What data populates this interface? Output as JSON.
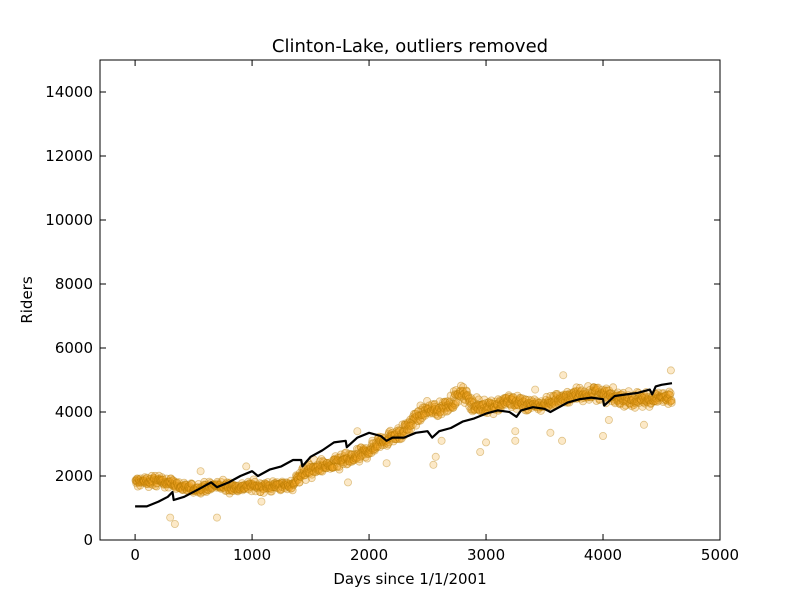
{
  "chart_data": {
    "type": "scatter",
    "title": "Clinton-Lake, outliers removed",
    "xlabel": "Days since 1/1/2001",
    "ylabel": "Riders",
    "xlim": [
      -300,
      5000
    ],
    "ylim": [
      0,
      15000
    ],
    "xticks": [
      0,
      1000,
      2000,
      3000,
      4000,
      5000
    ],
    "yticks": [
      0,
      2000,
      4000,
      6000,
      8000,
      10000,
      12000,
      14000
    ],
    "grid": false,
    "legend": "none",
    "colors": {
      "points_fill": "#f5a623",
      "points_edge": "#b57a00",
      "trend_line": "#000000"
    },
    "series": [
      {
        "kind": "scatter",
        "profile": [
          [
            0,
            1800
          ],
          [
            150,
            1850
          ],
          [
            300,
            1800
          ],
          [
            400,
            1650
          ],
          [
            500,
            1600
          ],
          [
            600,
            1650
          ],
          [
            700,
            1700
          ],
          [
            800,
            1650
          ],
          [
            900,
            1650
          ],
          [
            1000,
            1700
          ],
          [
            1100,
            1650
          ],
          [
            1200,
            1700
          ],
          [
            1300,
            1700
          ],
          [
            1350,
            1750
          ],
          [
            1400,
            2000
          ],
          [
            1500,
            2200
          ],
          [
            1600,
            2300
          ],
          [
            1700,
            2350
          ],
          [
            1800,
            2500
          ],
          [
            1900,
            2600
          ],
          [
            2000,
            2800
          ],
          [
            2100,
            3100
          ],
          [
            2200,
            3250
          ],
          [
            2300,
            3400
          ],
          [
            2400,
            3800
          ],
          [
            2500,
            4100
          ],
          [
            2600,
            4050
          ],
          [
            2700,
            4300
          ],
          [
            2800,
            4600
          ],
          [
            2900,
            4200
          ],
          [
            3000,
            4150
          ],
          [
            3100,
            4250
          ],
          [
            3200,
            4350
          ],
          [
            3300,
            4300
          ],
          [
            3400,
            4200
          ],
          [
            3500,
            4250
          ],
          [
            3600,
            4400
          ],
          [
            3700,
            4450
          ],
          [
            3800,
            4550
          ],
          [
            3900,
            4600
          ],
          [
            4000,
            4550
          ],
          [
            4100,
            4450
          ],
          [
            4200,
            4400
          ],
          [
            4300,
            4350
          ],
          [
            4400,
            4400
          ],
          [
            4500,
            4450
          ],
          [
            4590,
            4500
          ]
        ],
        "outliers": [
          [
            300,
            700
          ],
          [
            340,
            500
          ],
          [
            560,
            2150
          ],
          [
            700,
            700
          ],
          [
            950,
            2300
          ],
          [
            1820,
            1800
          ],
          [
            1900,
            3400
          ],
          [
            2150,
            2400
          ],
          [
            2550,
            2350
          ],
          [
            2570,
            2600
          ],
          [
            2620,
            3100
          ],
          [
            2950,
            2750
          ],
          [
            3000,
            3050
          ],
          [
            3250,
            3100
          ],
          [
            3250,
            3400
          ],
          [
            3420,
            4700
          ],
          [
            3550,
            3350
          ],
          [
            3650,
            3100
          ],
          [
            3660,
            5150
          ],
          [
            4000,
            3250
          ],
          [
            4050,
            3750
          ],
          [
            4350,
            3600
          ],
          [
            4580,
            5300
          ],
          [
            1080,
            1200
          ]
        ]
      },
      {
        "kind": "line",
        "points": [
          [
            0,
            1050
          ],
          [
            100,
            1050
          ],
          [
            200,
            1200
          ],
          [
            280,
            1350
          ],
          [
            320,
            1500
          ],
          [
            330,
            1250
          ],
          [
            420,
            1350
          ],
          [
            550,
            1600
          ],
          [
            650,
            1800
          ],
          [
            700,
            1650
          ],
          [
            800,
            1800
          ],
          [
            900,
            2000
          ],
          [
            1000,
            2150
          ],
          [
            1050,
            2000
          ],
          [
            1150,
            2200
          ],
          [
            1250,
            2300
          ],
          [
            1350,
            2500
          ],
          [
            1420,
            2500
          ],
          [
            1430,
            2300
          ],
          [
            1500,
            2600
          ],
          [
            1600,
            2800
          ],
          [
            1700,
            3050
          ],
          [
            1800,
            3100
          ],
          [
            1810,
            2900
          ],
          [
            1900,
            3200
          ],
          [
            2000,
            3350
          ],
          [
            2100,
            3250
          ],
          [
            2150,
            3100
          ],
          [
            2200,
            3200
          ],
          [
            2300,
            3200
          ],
          [
            2400,
            3350
          ],
          [
            2500,
            3400
          ],
          [
            2540,
            3200
          ],
          [
            2600,
            3400
          ],
          [
            2700,
            3500
          ],
          [
            2800,
            3700
          ],
          [
            2900,
            3800
          ],
          [
            3000,
            3950
          ],
          [
            3100,
            4050
          ],
          [
            3200,
            4000
          ],
          [
            3260,
            3850
          ],
          [
            3300,
            4050
          ],
          [
            3400,
            4150
          ],
          [
            3500,
            4100
          ],
          [
            3550,
            4000
          ],
          [
            3600,
            4100
          ],
          [
            3700,
            4300
          ],
          [
            3800,
            4400
          ],
          [
            3900,
            4450
          ],
          [
            4000,
            4400
          ],
          [
            4010,
            4200
          ],
          [
            4100,
            4500
          ],
          [
            4200,
            4550
          ],
          [
            4300,
            4600
          ],
          [
            4400,
            4700
          ],
          [
            4420,
            4550
          ],
          [
            4450,
            4800
          ],
          [
            4500,
            4850
          ],
          [
            4590,
            4900
          ]
        ]
      }
    ]
  }
}
